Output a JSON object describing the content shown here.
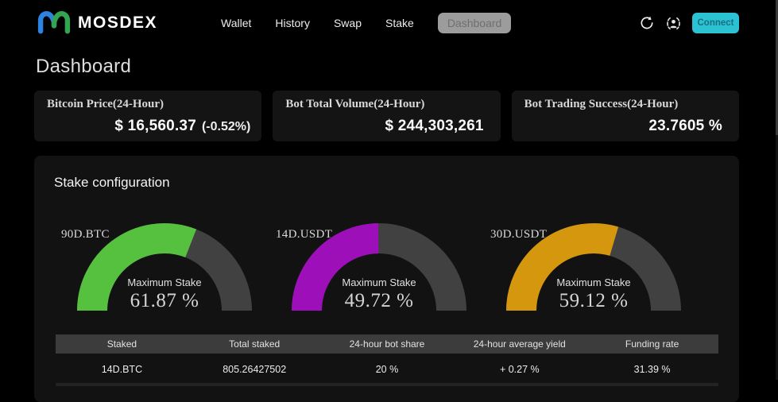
{
  "navbar": {
    "brand": "MOSDEX",
    "items": [
      {
        "label": "Wallet",
        "active": false
      },
      {
        "label": "History",
        "active": false
      },
      {
        "label": "Swap",
        "active": false
      },
      {
        "label": "Stake",
        "active": false
      },
      {
        "label": "Dashboard",
        "active": true
      }
    ],
    "connect_label": "Connect"
  },
  "page": {
    "title": "Dashboard"
  },
  "stat_cards": [
    {
      "title": "Bitcoin Price(24-Hour)",
      "value": "$ 16,560.37",
      "change": "(-0.52%)"
    },
    {
      "title": "Bot Total Volume(24-Hour)",
      "value": "$ 244,303,261",
      "change": ""
    },
    {
      "title": "Bot Trading Success(24-Hour)",
      "value": "23.7605 %",
      "change": ""
    }
  ],
  "stake_section": {
    "title": "Stake configuration",
    "gauge_center_label": "Maximum Stake"
  },
  "chart_data": [
    {
      "type": "gauge",
      "label": "90D.BTC",
      "value": 61.87,
      "max": 100,
      "display": "61.87 %",
      "color": "#56c13e",
      "track_color": "#414141"
    },
    {
      "type": "gauge",
      "label": "14D.USDT",
      "value": 49.72,
      "max": 100,
      "display": "49.72 %",
      "color": "#9c0fb9",
      "track_color": "#414141"
    },
    {
      "type": "gauge",
      "label": "30D.USDT",
      "value": 59.12,
      "max": 100,
      "display": "59.12 %",
      "color": "#d4970e",
      "track_color": "#414141"
    }
  ],
  "table": {
    "headers": [
      "Staked",
      "Total staked",
      "24-hour bot share",
      "24-hour average yield",
      "Funding rate"
    ],
    "rows": [
      [
        "14D.BTC",
        "805.26427502",
        "20 %",
        "+ 0.27 %",
        "31.39 %"
      ]
    ]
  },
  "colors": {
    "accent": "#2bc2d4",
    "accent_text": "#17717e",
    "logo_blue": "#2e82e0",
    "logo_green": "#33a551",
    "gauge_green": "#56c13e",
    "gauge_purple": "#9c0fb9",
    "gauge_orange": "#d4970e",
    "gauge_track": "#414141",
    "table_header_bg": "#3c3c3c",
    "card_bg": "#141414",
    "background": "#000000"
  }
}
